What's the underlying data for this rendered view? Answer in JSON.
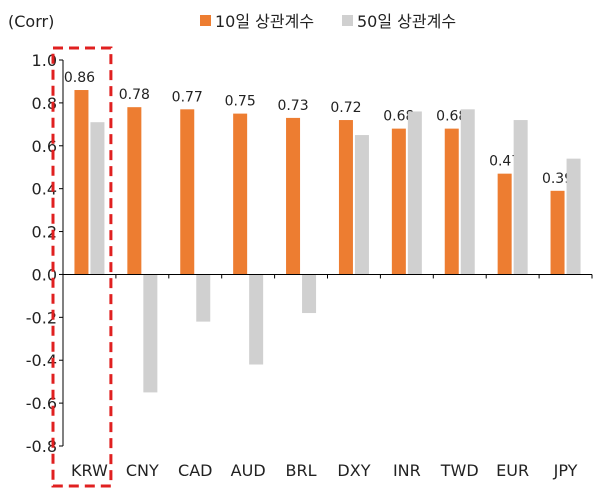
{
  "chart_data": {
    "type": "bar",
    "unit_label": "(Corr)",
    "categories": [
      "KRW",
      "CNY",
      "CAD",
      "AUD",
      "BRL",
      "DXY",
      "INR",
      "TWD",
      "EUR",
      "JPY"
    ],
    "series": [
      {
        "name": "10일 상관계수",
        "color": "#ED7D31",
        "values": [
          0.86,
          0.78,
          0.77,
          0.75,
          0.73,
          0.72,
          0.68,
          0.68,
          0.47,
          0.39
        ],
        "labels": [
          "0.86",
          "0.78",
          "0.77",
          "0.75",
          "0.73",
          "0.72",
          "0.68",
          "0.68",
          "0.47",
          "0.39"
        ]
      },
      {
        "name": "50일 상관계수",
        "color": "#D0D0D0",
        "values": [
          0.71,
          -0.55,
          -0.22,
          -0.42,
          -0.18,
          0.65,
          0.76,
          0.77,
          0.72,
          0.54
        ]
      }
    ],
    "yticks": [
      "1.0",
      "0.8",
      "0.6",
      "0.4",
      "0.2",
      "0.0",
      "-0.2",
      "-0.4",
      "-0.6",
      "-0.8"
    ],
    "ylim": [
      -0.8,
      1.0
    ],
    "legend_position": "top",
    "highlight": {
      "category": "KRW",
      "style": "dashed-box",
      "color": "#E02020"
    },
    "grid": false
  }
}
